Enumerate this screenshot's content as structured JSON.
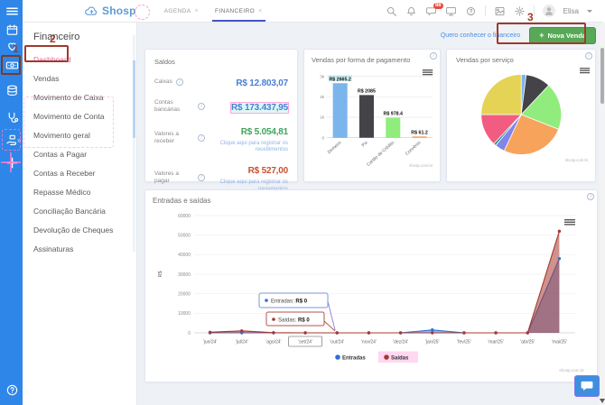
{
  "colors": {
    "sidebar_blue": "#2e86e8",
    "accent_pink": "#ee5fa7",
    "tab_underline": "#4553c9",
    "link_blue": "#4a90e2",
    "button_green": "#57a957",
    "annotation_red": "#9e3a2b",
    "entradas_blue": "#2f6fd8",
    "saidas_red": "#a9382f"
  },
  "header": {
    "logo": "Shosp",
    "tabs": [
      {
        "label": "AGENDA"
      },
      {
        "label": "FINANCEIRO"
      }
    ],
    "chat_badge": "88",
    "user": "Elisa",
    "icons": [
      "search",
      "bell",
      "chat",
      "monitor",
      "help",
      "image",
      "gear"
    ]
  },
  "sidebar": {
    "icons": [
      "menu",
      "calendar",
      "heart",
      "cash",
      "records",
      "medical",
      "hand-money",
      "plus",
      "help"
    ]
  },
  "nav": {
    "title": "Financeiro",
    "active": "Dashboard",
    "items": [
      "Dashboard",
      "Vendas",
      "Movimento de Caixa",
      "Movimento de Conta",
      "Movimento geral",
      "Contas a Pagar",
      "Contas a Receber",
      "Repasse Médico",
      "Conciliação Bancária",
      "Devolução de Cheques",
      "Assinaturas"
    ]
  },
  "actionbar": {
    "link": "Quero conhecer o financeiro",
    "new_sale": "Nova Venda",
    "plus": "+"
  },
  "saldos": {
    "title": "Saldos",
    "rows": [
      {
        "label": "Caixas",
        "value": "R$ 12.803,07",
        "color": "#4a7fd4",
        "highlight": false,
        "link": ""
      },
      {
        "label": "Contas bancárias",
        "value": "R$ 173.437,95",
        "color": "#4a7fd4",
        "highlight": true,
        "link": ""
      },
      {
        "label": "Valores a receber",
        "value": "R$ 5.054,81",
        "color": "#3fa45b",
        "highlight": false,
        "link": "Clique aqui para registrar os recebimentos"
      },
      {
        "label": "Valores a pagar",
        "value": "R$ 527,00",
        "color": "#c9512e",
        "highlight": false,
        "link": "Clique aqui para registrar os pagamentos"
      }
    ]
  },
  "annotations": {
    "step1": "1",
    "step2": "2",
    "step3": "3"
  },
  "chart_data": [
    {
      "type": "bar",
      "title": "Vendas por forma de pagamento",
      "categories": [
        "Dinheiro",
        "Pix",
        "Cartão de Crédito",
        "Convênio"
      ],
      "values": [
        2665.2,
        2085,
        978.4,
        61.2
      ],
      "labels": [
        "R$ 2665.2",
        "R$ 2085",
        "R$ 978.4",
        "R$ 61.2"
      ],
      "colors": [
        "#7cb5ec",
        "#434348",
        "#90ed7d",
        "#f7a35c"
      ],
      "ylim": [
        0,
        3000
      ],
      "yticks": [
        {
          "v": 0,
          "label": "0"
        },
        {
          "v": 1000,
          "label": "1k"
        },
        {
          "v": 2000,
          "label": "2k"
        },
        {
          "v": 3000,
          "label": "3k"
        }
      ],
      "watermark": "shosp.com.br"
    },
    {
      "type": "pie",
      "title": "Vendas por serviço",
      "slices": [
        {
          "value": 2,
          "color": "#7cb5ec"
        },
        {
          "value": 10,
          "color": "#434348"
        },
        {
          "value": 19,
          "color": "#90ed7d"
        },
        {
          "value": 26,
          "color": "#f7a35c"
        },
        {
          "value": 4,
          "color": "#8085e9"
        },
        {
          "value": 1,
          "color": "#2b908f"
        },
        {
          "value": 13,
          "color": "#f15c80"
        },
        {
          "value": 25,
          "color": "#e4d354"
        }
      ],
      "watermark": "shosp.com.br"
    },
    {
      "type": "area",
      "title": "Entradas e saídas",
      "ylabel": "R$",
      "ylim": [
        0,
        60000
      ],
      "ytick_step": 10000,
      "categories": [
        "'jun/24'",
        "'jul/24'",
        "'ago/24'",
        "'set/24'",
        "'out/24'",
        "'nov/24'",
        "'dez/24'",
        "'jan/25'",
        "'fev/25'",
        "'mar/25'",
        "'abr/25'",
        "'mai/25'"
      ],
      "series": [
        {
          "name": "Entradas",
          "color": "#2f6fd8",
          "values": [
            0,
            0,
            0,
            0,
            0,
            0,
            0,
            1500,
            0,
            0,
            0,
            38000
          ]
        },
        {
          "name": "Saídas",
          "color": "#a9382f",
          "values": [
            300,
            1000,
            100,
            0,
            0,
            0,
            0,
            0,
            0,
            0,
            0,
            52000
          ]
        }
      ],
      "tooltips": [
        {
          "series": "Entradas",
          "label": "Entradas:",
          "value": "R$ 0"
        },
        {
          "series": "Saídas",
          "label": "Saídas:",
          "value": "R$ 0"
        }
      ],
      "selected_category": "'set/24'",
      "legend": [
        "Entradas",
        "Saídas"
      ],
      "watermark": "shosp.com.br"
    }
  ]
}
